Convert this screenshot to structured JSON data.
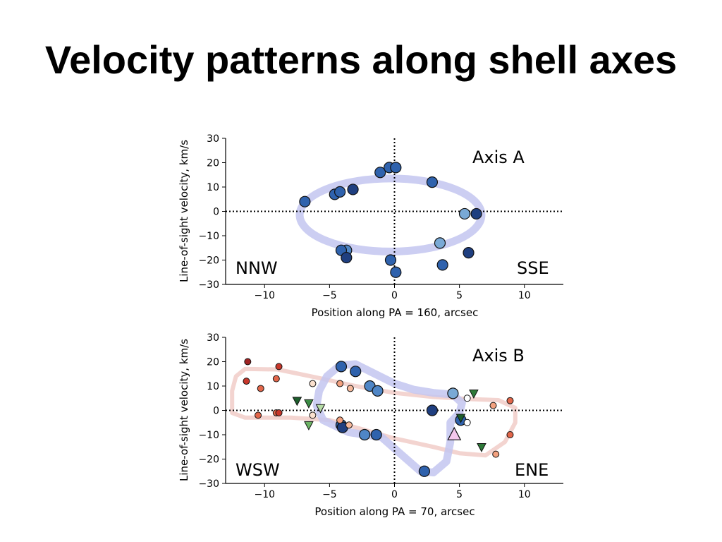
{
  "slide": {
    "title": "Velocity patterns along shell axes"
  },
  "chart_data": [
    {
      "type": "scatter",
      "xlabel": "Position along PA = 160, arcsec",
      "ylabel": "Line-of-sight velocity, km/s",
      "xlim": [
        -13,
        13
      ],
      "ylim": [
        -30,
        30
      ],
      "xticks": [
        -10,
        -5,
        0,
        5,
        10
      ],
      "yticks": [
        -30,
        -20,
        -10,
        0,
        10,
        20,
        30
      ],
      "annotations": [
        "Axis A",
        "NNW",
        "SSE"
      ],
      "reference_lines": {
        "x": 0,
        "y": 0,
        "style": "dotted"
      },
      "ellipse": {
        "center": [
          -0.3,
          -1.5
        ],
        "semi_axes": [
          7,
          15
        ],
        "color": "#c3c6f0"
      },
      "series": [
        {
          "marker": "circle",
          "points": [
            {
              "x": -6.9,
              "y": 4,
              "color": "#2f62ad"
            },
            {
              "x": -4.6,
              "y": 7,
              "color": "#2f62ad"
            },
            {
              "x": -4.2,
              "y": 8,
              "color": "#2f62ad"
            },
            {
              "x": -3.2,
              "y": 9,
              "color": "#1f3f80"
            },
            {
              "x": -1.1,
              "y": 16,
              "color": "#2f62ad"
            },
            {
              "x": -0.4,
              "y": 18,
              "color": "#2f62ad"
            },
            {
              "x": 0.1,
              "y": 18,
              "color": "#2f62ad"
            },
            {
              "x": 2.9,
              "y": 12,
              "color": "#2f62ad"
            },
            {
              "x": 5.4,
              "y": -1,
              "color": "#79a9d6"
            },
            {
              "x": 6.3,
              "y": -1,
              "color": "#1f3f80"
            },
            {
              "x": 3.5,
              "y": -13,
              "color": "#79a9d6"
            },
            {
              "x": 5.7,
              "y": -17,
              "color": "#1f3f80"
            },
            {
              "x": 3.7,
              "y": -22,
              "color": "#2f62ad"
            },
            {
              "x": -0.3,
              "y": -20,
              "color": "#2f62ad"
            },
            {
              "x": 0.1,
              "y": -25,
              "color": "#2f62ad"
            },
            {
              "x": -3.7,
              "y": -16,
              "color": "#4f86c6"
            },
            {
              "x": -4.1,
              "y": -16,
              "color": "#2f62ad"
            },
            {
              "x": -3.7,
              "y": -19,
              "color": "#1f3f80"
            }
          ]
        }
      ]
    },
    {
      "type": "scatter",
      "xlabel": "Position along PA = 70, arcsec",
      "ylabel": "Line-of-sight velocity, km/s",
      "xlim": [
        -13,
        13
      ],
      "ylim": [
        -30,
        30
      ],
      "xticks": [
        -10,
        -5,
        0,
        5,
        10
      ],
      "yticks": [
        -30,
        -20,
        -10,
        0,
        10,
        20,
        30
      ],
      "annotations": [
        "Axis B",
        "WSW",
        "ENE"
      ],
      "reference_lines": {
        "x": 0,
        "y": 0,
        "style": "dotted"
      },
      "series": [
        {
          "marker": "large-circle",
          "points": [
            {
              "x": -4.1,
              "y": 18,
              "color": "#2f62ad"
            },
            {
              "x": -3,
              "y": 16,
              "color": "#2f62ad"
            },
            {
              "x": -1.9,
              "y": 10,
              "color": "#4f86c6"
            },
            {
              "x": -1.3,
              "y": 8,
              "color": "#4f86c6"
            },
            {
              "x": 4.5,
              "y": 7,
              "color": "#79a9d6"
            },
            {
              "x": 2.9,
              "y": 0,
              "color": "#1f3f80"
            },
            {
              "x": 5.1,
              "y": -4,
              "color": "#2f62ad"
            },
            {
              "x": -4.1,
              "y": -6,
              "color": "#2f62ad"
            },
            {
              "x": -4,
              "y": -7,
              "color": "#1f3f80"
            },
            {
              "x": -2.3,
              "y": -10,
              "color": "#4f86c6"
            },
            {
              "x": -1.4,
              "y": -10,
              "color": "#2f62ad"
            },
            {
              "x": 2.3,
              "y": -25,
              "color": "#2f62ad"
            }
          ]
        },
        {
          "marker": "small-circle",
          "points": [
            {
              "x": -11.3,
              "y": 20,
              "color": "#a02323"
            },
            {
              "x": -8.9,
              "y": 18,
              "color": "#c8372b"
            },
            {
              "x": -11.4,
              "y": 12,
              "color": "#c8372b"
            },
            {
              "x": -9.1,
              "y": 13,
              "color": "#e2664a"
            },
            {
              "x": -10.3,
              "y": 9,
              "color": "#e2664a"
            },
            {
              "x": -6.3,
              "y": 11,
              "color": "#fbe1cf"
            },
            {
              "x": -4.2,
              "y": 11,
              "color": "#f3a17f"
            },
            {
              "x": -3.4,
              "y": 9,
              "color": "#f7b99b"
            },
            {
              "x": -9.1,
              "y": -1,
              "color": "#e2664a"
            },
            {
              "x": -8.9,
              "y": -1,
              "color": "#c8372b"
            },
            {
              "x": -10.5,
              "y": -2,
              "color": "#e2664a"
            },
            {
              "x": -6.3,
              "y": -2,
              "color": "#fbe1cf"
            },
            {
              "x": -4.2,
              "y": -4,
              "color": "#f3a17f"
            },
            {
              "x": -3.5,
              "y": -6,
              "color": "#f7b99b"
            },
            {
              "x": 5.6,
              "y": 5,
              "color": "#ffffff"
            },
            {
              "x": 5.6,
              "y": -5,
              "color": "#ffffff"
            },
            {
              "x": 7.6,
              "y": 2,
              "color": "#f3a17f"
            },
            {
              "x": 8.9,
              "y": 4,
              "color": "#e2664a"
            },
            {
              "x": 8.9,
              "y": -10,
              "color": "#e2664a"
            },
            {
              "x": 7.8,
              "y": -18,
              "color": "#f3a17f"
            }
          ]
        },
        {
          "marker": "triangle-down",
          "points": [
            {
              "x": -7.5,
              "y": 4,
              "color": "#1d5e2c"
            },
            {
              "x": -6.6,
              "y": 3,
              "color": "#3b8c44"
            },
            {
              "x": -5.7,
              "y": 1,
              "color": "#b6dca6"
            },
            {
              "x": -6.6,
              "y": -6,
              "color": "#6db465"
            },
            {
              "x": 6.1,
              "y": 7,
              "color": "#2e7a39"
            },
            {
              "x": 5.1,
              "y": -3,
              "color": "#1d5e2c"
            },
            {
              "x": 6.7,
              "y": -15,
              "color": "#2e7a39"
            }
          ]
        },
        {
          "marker": "triangle-up",
          "points": [
            {
              "x": 4.6,
              "y": -10,
              "color": "#f4c7ec"
            }
          ]
        }
      ]
    }
  ]
}
